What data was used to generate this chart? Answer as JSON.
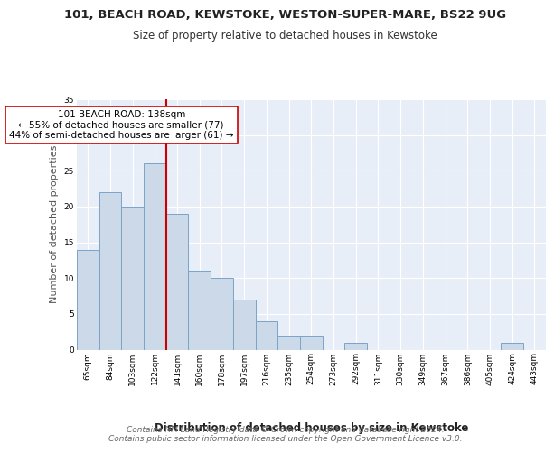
{
  "title1": "101, BEACH ROAD, KEWSTOKE, WESTON-SUPER-MARE, BS22 9UG",
  "title2": "Size of property relative to detached houses in Kewstoke",
  "xlabel": "Distribution of detached houses by size in Kewstoke",
  "ylabel": "Number of detached properties",
  "categories": [
    "65sqm",
    "84sqm",
    "103sqm",
    "122sqm",
    "141sqm",
    "160sqm",
    "178sqm",
    "197sqm",
    "216sqm",
    "235sqm",
    "254sqm",
    "273sqm",
    "292sqm",
    "311sqm",
    "330sqm",
    "349sqm",
    "367sqm",
    "386sqm",
    "405sqm",
    "424sqm",
    "443sqm"
  ],
  "values": [
    14,
    22,
    20,
    26,
    19,
    11,
    10,
    7,
    4,
    2,
    2,
    0,
    1,
    0,
    0,
    0,
    0,
    0,
    0,
    1,
    0
  ],
  "bar_color": "#ccd9e8",
  "bar_edge_color": "#7ba3c8",
  "vline_color": "#cc0000",
  "annotation_text": "101 BEACH ROAD: 138sqm\n← 55% of detached houses are smaller (77)\n44% of semi-detached houses are larger (61) →",
  "annotation_box_color": "#ffffff",
  "annotation_box_edge": "#cc0000",
  "ylim": [
    0,
    35
  ],
  "yticks": [
    0,
    5,
    10,
    15,
    20,
    25,
    30,
    35
  ],
  "footnote": "Contains HM Land Registry data © Crown copyright and database right 2024.\nContains public sector information licensed under the Open Government Licence v3.0.",
  "bg_color": "#e8eef8",
  "fig_bg_color": "#ffffff",
  "title1_fontsize": 9.5,
  "title2_fontsize": 8.5,
  "ylabel_fontsize": 8,
  "xlabel_fontsize": 8.5,
  "tick_fontsize": 6.5,
  "footnote_fontsize": 6.5,
  "ann_fontsize": 7.5,
  "grid_color": "#ffffff",
  "vline_x_data": 3.5
}
